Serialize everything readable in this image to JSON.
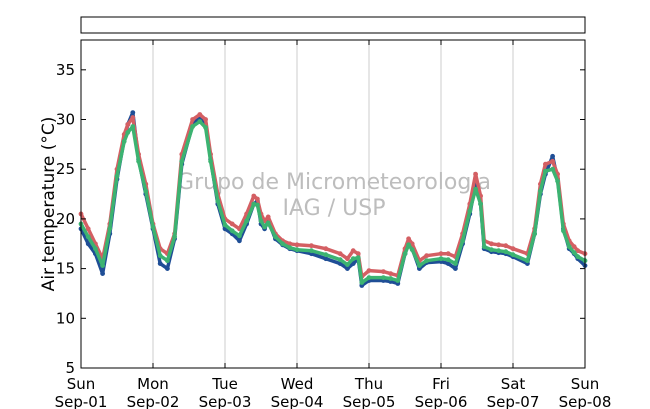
{
  "chart_data": {
    "type": "scatter",
    "title": "",
    "ylabel": "Air temperature (°C)",
    "ylim": [
      5,
      38
    ],
    "yticks": [
      5,
      10,
      15,
      20,
      25,
      30,
      35
    ],
    "xlim": [
      0,
      7
    ],
    "xticks": [
      {
        "x": 0,
        "day": "Sun",
        "date": "Sep-01"
      },
      {
        "x": 1,
        "day": "Mon",
        "date": "Sep-02"
      },
      {
        "x": 2,
        "day": "Tue",
        "date": "Sep-03"
      },
      {
        "x": 3,
        "day": "Wed",
        "date": "Sep-04"
      },
      {
        "x": 4,
        "day": "Thu",
        "date": "Sep-05"
      },
      {
        "x": 5,
        "day": "Fri",
        "date": "Sep-06"
      },
      {
        "x": 6,
        "day": "Sat",
        "date": "Sep-07"
      },
      {
        "x": 7,
        "day": "Sun",
        "date": "Sep-08"
      }
    ],
    "grid": "vertical",
    "watermark": [
      "Grupo de Micrometeorologia",
      "IAG / USP"
    ],
    "legend": "top",
    "x": [
      0,
      0.1,
      0.2,
      0.3,
      0.4,
      0.5,
      0.6,
      0.65,
      0.72,
      0.8,
      0.9,
      1.0,
      1.1,
      1.2,
      1.3,
      1.4,
      1.55,
      1.65,
      1.73,
      1.8,
      1.9,
      2.0,
      2.1,
      2.2,
      2.3,
      2.4,
      2.45,
      2.5,
      2.55,
      2.6,
      2.7,
      2.8,
      2.9,
      3.0,
      3.2,
      3.4,
      3.6,
      3.7,
      3.78,
      3.85,
      3.9,
      4.0,
      4.2,
      4.3,
      4.4,
      4.5,
      4.55,
      4.6,
      4.7,
      4.8,
      5.0,
      5.1,
      5.2,
      5.3,
      5.4,
      5.48,
      5.55,
      5.6,
      5.7,
      5.8,
      5.9,
      6.0,
      6.2,
      6.3,
      6.38,
      6.45,
      6.55,
      6.62,
      6.7,
      6.78,
      6.85,
      6.9,
      7.0
    ],
    "series": [
      {
        "color": "#1f4e96",
        "values": [
          19.0,
          17.5,
          16.5,
          14.5,
          18.5,
          24.0,
          28.0,
          29.5,
          30.7,
          26.0,
          22.5,
          19.0,
          15.5,
          15.0,
          18.0,
          25.5,
          29.5,
          30.2,
          29.5,
          26.0,
          21.5,
          19.0,
          18.5,
          17.8,
          19.5,
          21.5,
          21.8,
          19.5,
          19.0,
          19.8,
          18.0,
          17.4,
          17.0,
          16.8,
          16.5,
          16.0,
          15.5,
          15.0,
          15.5,
          16.0,
          13.3,
          13.8,
          13.8,
          13.7,
          13.5,
          16.5,
          17.5,
          17.0,
          15.0,
          15.6,
          15.7,
          15.5,
          15.0,
          17.5,
          20.5,
          23.5,
          21.5,
          17.0,
          16.7,
          16.6,
          16.5,
          16.2,
          15.5,
          18.5,
          22.5,
          24.5,
          26.3,
          24.0,
          19.0,
          17.0,
          16.5,
          16.0,
          15.3
        ]
      },
      {
        "color": "#d45f63",
        "values": [
          20.5,
          19.0,
          17.5,
          16.0,
          19.5,
          25.0,
          28.5,
          29.5,
          30.2,
          26.5,
          23.5,
          19.5,
          17.0,
          16.5,
          18.5,
          26.5,
          30.0,
          30.5,
          30.0,
          26.5,
          22.5,
          20.0,
          19.5,
          19.0,
          20.5,
          22.3,
          22.0,
          20.5,
          19.8,
          20.2,
          18.5,
          17.8,
          17.5,
          17.4,
          17.3,
          17.0,
          16.5,
          16.0,
          16.8,
          16.5,
          14.2,
          14.8,
          14.7,
          14.5,
          14.3,
          17.0,
          18.0,
          17.5,
          15.8,
          16.3,
          16.5,
          16.5,
          16.2,
          18.5,
          21.5,
          24.5,
          22.3,
          17.8,
          17.5,
          17.4,
          17.3,
          17.0,
          16.5,
          19.0,
          23.5,
          25.5,
          25.8,
          24.5,
          19.5,
          17.8,
          17.2,
          16.8,
          16.5
        ]
      },
      {
        "color": "#3cb371",
        "values": [
          19.5,
          18.2,
          17.0,
          15.3,
          19.0,
          24.3,
          27.8,
          28.7,
          29.3,
          25.8,
          22.8,
          19.2,
          16.3,
          15.8,
          18.2,
          25.8,
          29.3,
          29.8,
          29.2,
          25.8,
          21.8,
          19.4,
          18.8,
          18.3,
          19.8,
          21.5,
          21.4,
          19.8,
          19.2,
          19.6,
          18.2,
          17.5,
          17.1,
          16.9,
          16.8,
          16.4,
          15.9,
          15.4,
          16.0,
          16.1,
          13.6,
          14.1,
          14.1,
          14.0,
          13.8,
          16.5,
          17.4,
          16.9,
          15.3,
          15.8,
          16.0,
          15.9,
          15.5,
          17.8,
          20.8,
          23.0,
          21.5,
          17.2,
          16.9,
          16.8,
          16.7,
          16.4,
          15.8,
          18.5,
          22.8,
          24.8,
          25.0,
          23.8,
          18.8,
          17.2,
          16.6,
          16.2,
          15.8
        ]
      }
    ]
  }
}
